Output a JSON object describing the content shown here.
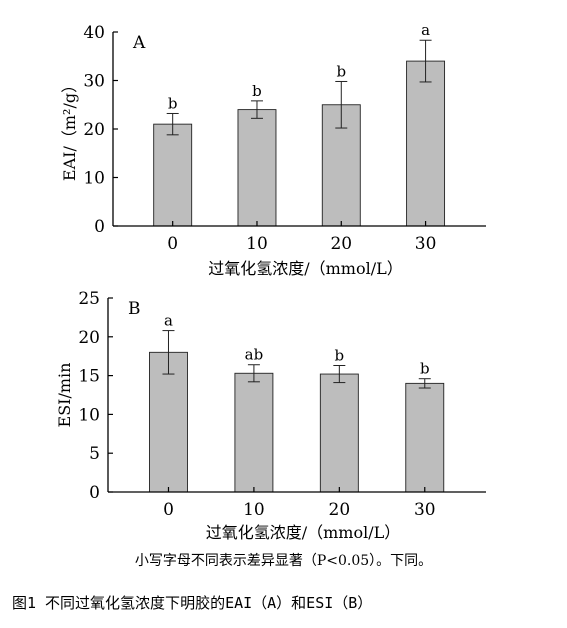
{
  "chart_data": [
    {
      "type": "bar",
      "panel_label": "A",
      "ylabel": "EAI/（m²/g）",
      "xlabel": "过氧化氢浓度/（mmol/L）",
      "categories": [
        "0",
        "10",
        "20",
        "30"
      ],
      "values": [
        21.0,
        24.0,
        25.0,
        34.0
      ],
      "errors": [
        2.2,
        1.8,
        4.8,
        4.3
      ],
      "significance": [
        "b",
        "b",
        "b",
        "a"
      ],
      "ylim": [
        0,
        40
      ],
      "yticks": [
        "0",
        "10",
        "20",
        "30",
        "40"
      ],
      "bar_color": "#bdbdbd"
    },
    {
      "type": "bar",
      "panel_label": "B",
      "ylabel": "ESI/min",
      "xlabel": "过氧化氢浓度/（mmol/L）",
      "categories": [
        "0",
        "10",
        "20",
        "30"
      ],
      "values": [
        18.0,
        15.3,
        15.2,
        14.0
      ],
      "errors": [
        2.8,
        1.1,
        1.1,
        0.6
      ],
      "significance": [
        "a",
        "ab",
        "b",
        "b"
      ],
      "ylim": [
        0,
        25
      ],
      "yticks": [
        "0",
        "5",
        "10",
        "15",
        "20",
        "25"
      ],
      "bar_color": "#bdbdbd"
    }
  ],
  "note": "小写字母不同表示差异显著（P<0.05）。下同。",
  "caption": "图1 不同过氧化氢浓度下明胶的EAI（A）和ESI（B）"
}
